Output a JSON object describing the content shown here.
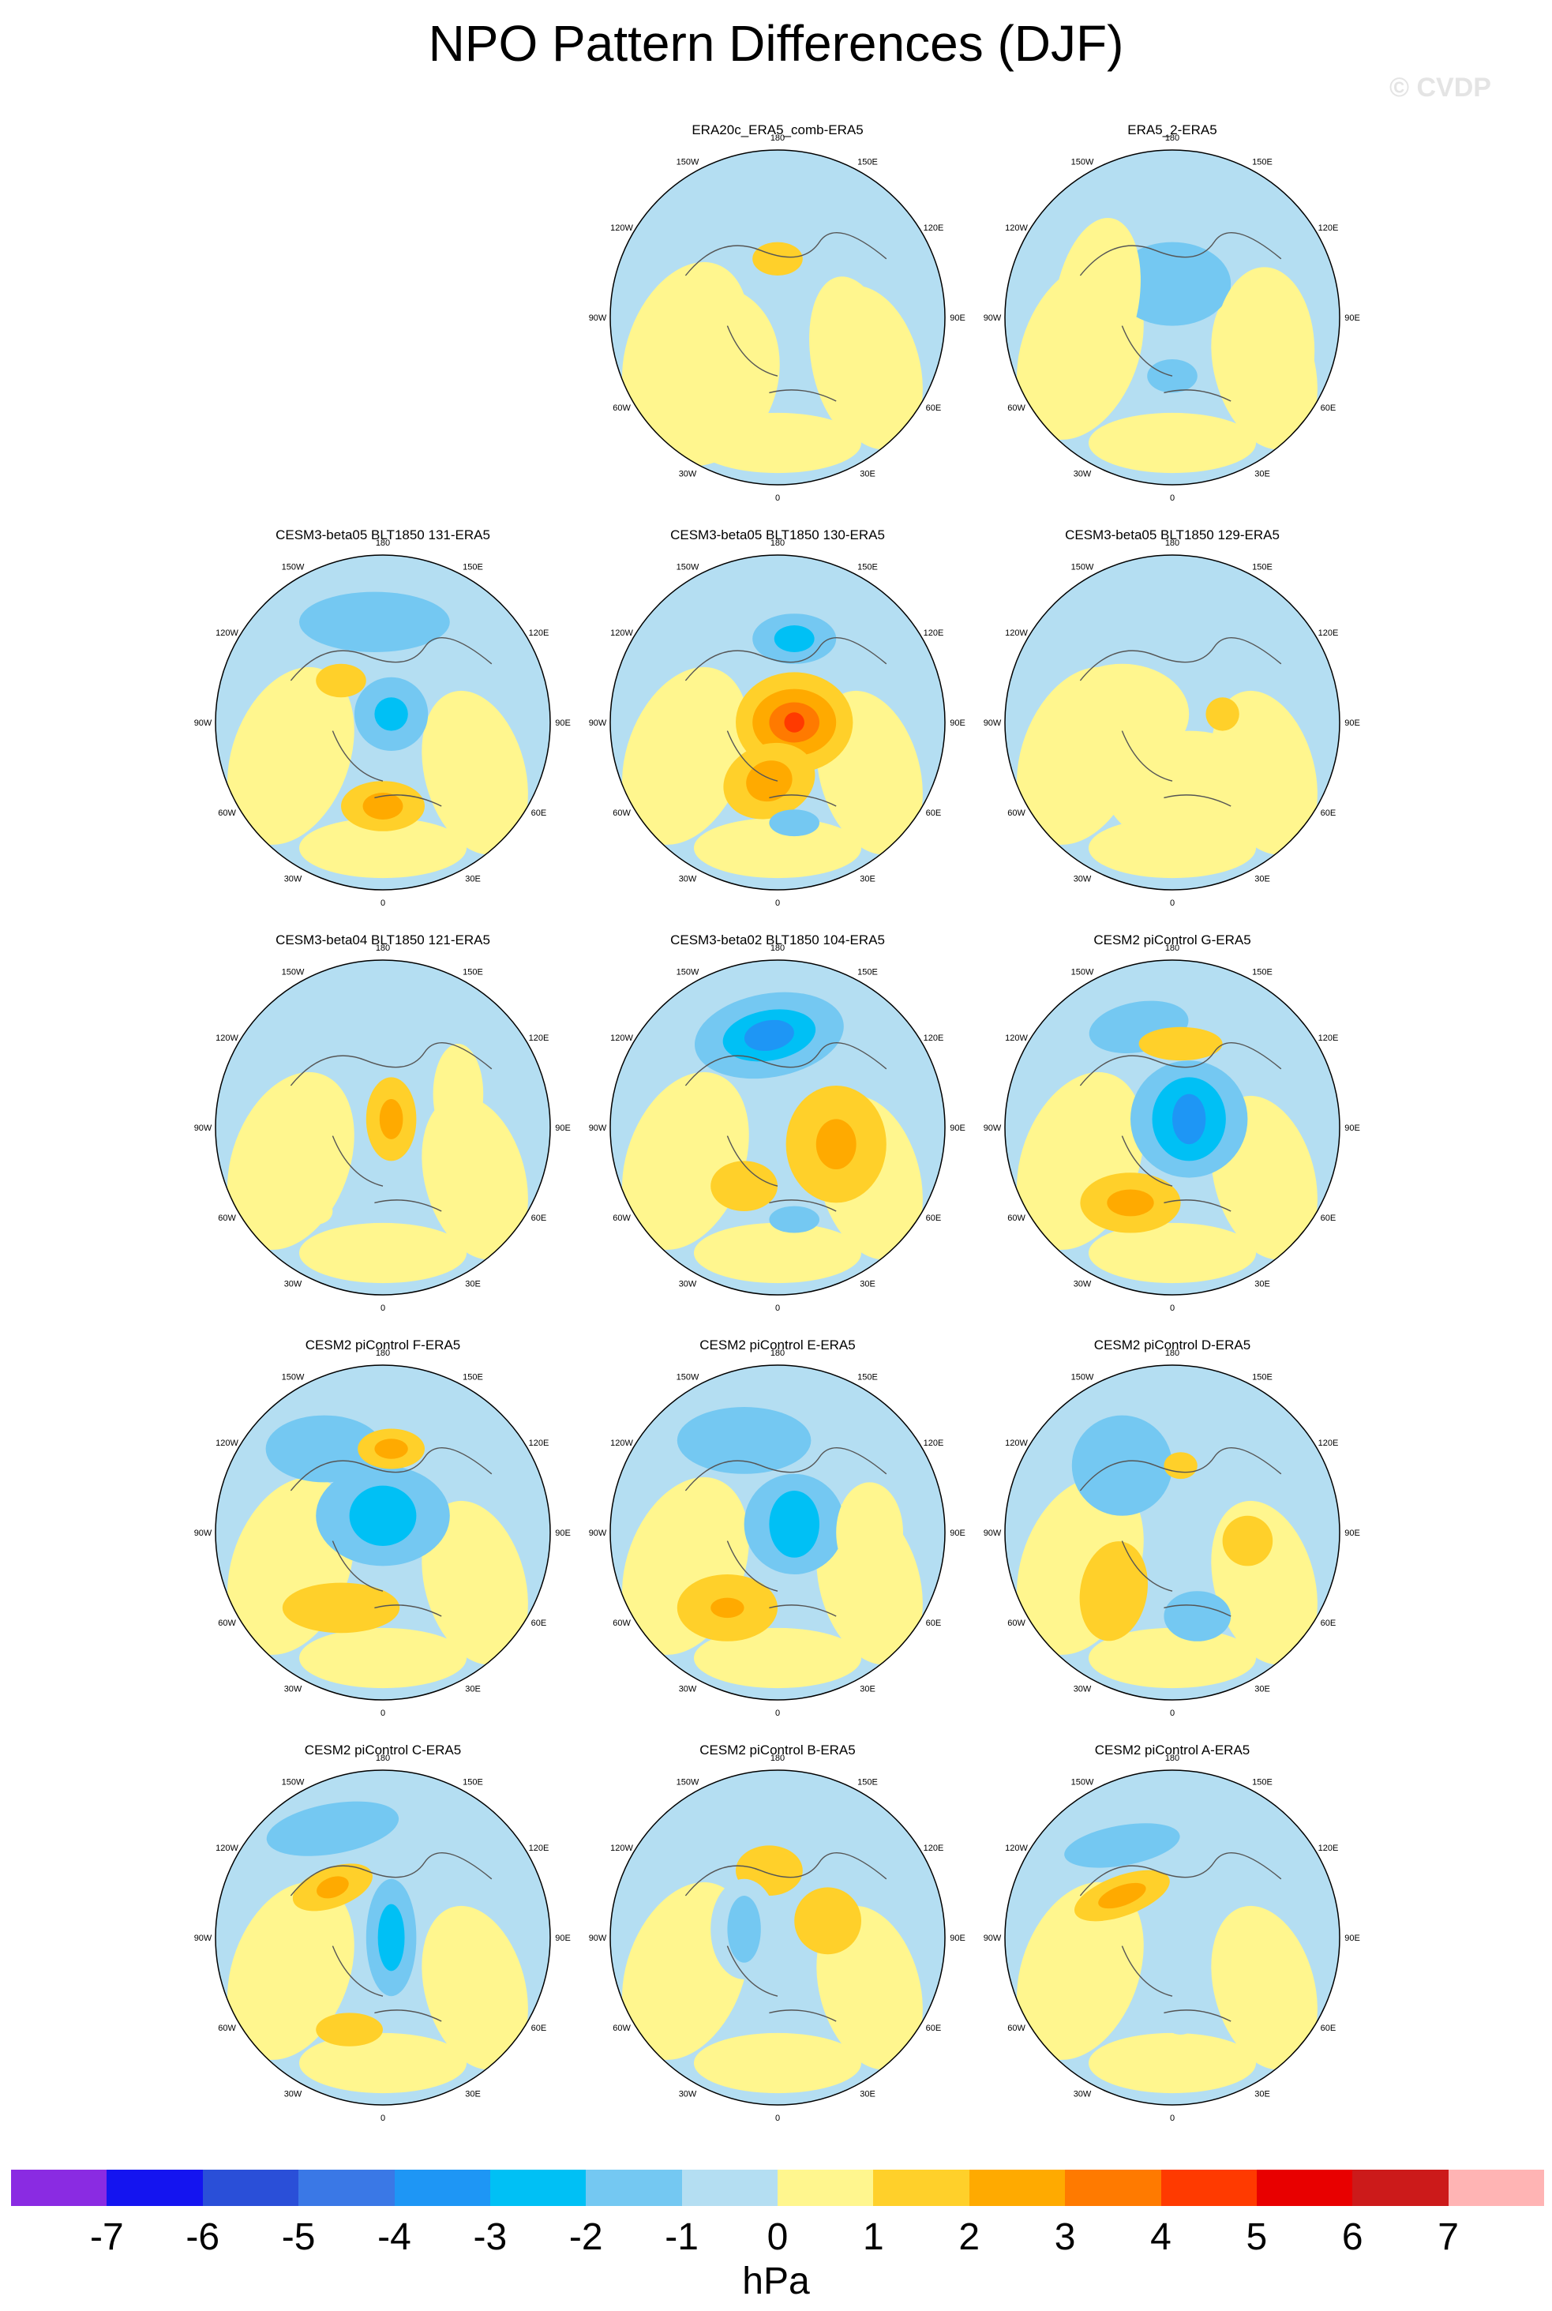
{
  "title": "NPO Pattern Differences (DJF)",
  "copyright": "© CVDP",
  "lon_labels": [
    "180",
    "150E",
    "120E",
    "90E",
    "60E",
    "30E",
    "0",
    "30W",
    "60W",
    "90W",
    "120W",
    "150W"
  ],
  "panels": [
    {
      "label": "",
      "empty": true
    },
    {
      "label": "ERA20c_ERA5_comb-ERA5"
    },
    {
      "label": "ERA5_2-ERA5"
    },
    {
      "label": "CESM3-beta05 BLT1850 131-ERA5"
    },
    {
      "label": "CESM3-beta05 BLT1850 130-ERA5"
    },
    {
      "label": "CESM3-beta05 BLT1850 129-ERA5"
    },
    {
      "label": "CESM3-beta04 BLT1850 121-ERA5"
    },
    {
      "label": "CESM3-beta02 BLT1850 104-ERA5"
    },
    {
      "label": "CESM2 piControl G-ERA5"
    },
    {
      "label": "CESM2 piControl F-ERA5"
    },
    {
      "label": "CESM2 piControl E-ERA5"
    },
    {
      "label": "CESM2 piControl D-ERA5"
    },
    {
      "label": "CESM2 piControl C-ERA5"
    },
    {
      "label": "CESM2 piControl B-ERA5"
    },
    {
      "label": "CESM2 piControl A-ERA5"
    }
  ],
  "colorbar": {
    "unit": "hPa",
    "colors": [
      "#8a2be2",
      "#1414f0",
      "#2a4fd8",
      "#3a78e6",
      "#1e96f5",
      "#00c0f5",
      "#74c8f2",
      "#b4def2",
      "#fff68e",
      "#ffd02a",
      "#ffaa00",
      "#ff7a00",
      "#ff3a00",
      "#e80000",
      "#cc1a1a",
      "#ffb4b4"
    ],
    "tick_labels": [
      "-7",
      "-6",
      "-5",
      "-4",
      "-3",
      "-2",
      "-1",
      "0",
      "1",
      "2",
      "3",
      "4",
      "5",
      "6",
      "7"
    ]
  }
}
